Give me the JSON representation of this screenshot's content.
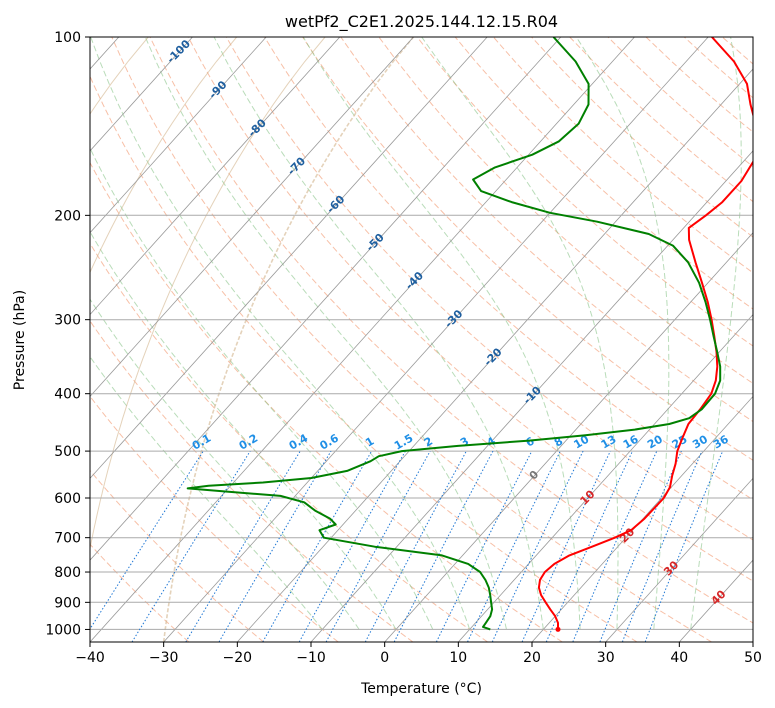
{
  "chart_data": {
    "type": "line",
    "title": "wetPf2_C2E1.2025.144.12.15.R04",
    "xlabel": "Temperature (°C)",
    "ylabel": "Pressure (hPa)",
    "xlim": [
      -40,
      50
    ],
    "ylim": [
      1050,
      100
    ],
    "y_scale": "log",
    "grid": true,
    "x_ticks": [
      "−40",
      "−30",
      "−20",
      "−10",
      "0",
      "10",
      "20",
      "30",
      "40",
      "50"
    ],
    "y_ticks": [
      "100",
      "200",
      "300",
      "400",
      "500",
      "600",
      "700",
      "800",
      "900",
      "1000"
    ],
    "series": [
      {
        "color": "#ff0000",
        "points": [
          {
            "p": 1000,
            "t": 22.0
          },
          {
            "p": 975,
            "t": 21.2
          },
          {
            "p": 950,
            "t": 20.0
          },
          {
            "p": 925,
            "t": 18.5
          },
          {
            "p": 900,
            "t": 17.0
          },
          {
            "p": 875,
            "t": 15.5
          },
          {
            "p": 850,
            "t": 14.3
          },
          {
            "p": 825,
            "t": 13.5
          },
          {
            "p": 800,
            "t": 13.2
          },
          {
            "p": 775,
            "t": 13.5
          },
          {
            "p": 750,
            "t": 14.5
          },
          {
            "p": 725,
            "t": 16.5
          },
          {
            "p": 700,
            "t": 18.5
          },
          {
            "p": 680,
            "t": 19.8
          },
          {
            "p": 650,
            "t": 20.2
          },
          {
            "p": 600,
            "t": 20.3
          },
          {
            "p": 575,
            "t": 19.8
          },
          {
            "p": 550,
            "t": 18.7
          },
          {
            "p": 525,
            "t": 17.7
          },
          {
            "p": 500,
            "t": 16.4
          },
          {
            "p": 475,
            "t": 15.5
          },
          {
            "p": 450,
            "t": 14.6
          },
          {
            "p": 425,
            "t": 14.4
          },
          {
            "p": 400,
            "t": 14.0
          },
          {
            "p": 380,
            "t": 13.0
          },
          {
            "p": 360,
            "t": 11.5
          },
          {
            "p": 340,
            "t": 9.6
          },
          {
            "p": 320,
            "t": 7.4
          },
          {
            "p": 300,
            "t": 5.0
          },
          {
            "p": 280,
            "t": 2.3
          },
          {
            "p": 260,
            "t": -0.8
          },
          {
            "p": 240,
            "t": -4.2
          },
          {
            "p": 220,
            "t": -7.8
          },
          {
            "p": 210,
            "t": -9.3
          },
          {
            "p": 200,
            "t": -8.5
          },
          {
            "p": 190,
            "t": -7.9
          },
          {
            "p": 175,
            "t": -7.9
          },
          {
            "p": 160,
            "t": -8.8
          },
          {
            "p": 150,
            "t": -11.0
          },
          {
            "p": 140,
            "t": -13.0
          },
          {
            "p": 130,
            "t": -16.0
          },
          {
            "p": 120,
            "t": -19.0
          },
          {
            "p": 110,
            "t": -23.5
          },
          {
            "p": 100,
            "t": -29.5
          }
        ]
      },
      {
        "color": "#008000",
        "points": [
          {
            "p": 1000,
            "t": 12.8
          },
          {
            "p": 990,
            "t": 11.5
          },
          {
            "p": 975,
            "t": 11.4
          },
          {
            "p": 950,
            "t": 11.2
          },
          {
            "p": 925,
            "t": 10.6
          },
          {
            "p": 900,
            "t": 9.6
          },
          {
            "p": 875,
            "t": 8.6
          },
          {
            "p": 850,
            "t": 7.5
          },
          {
            "p": 825,
            "t": 6.1
          },
          {
            "p": 800,
            "t": 4.4
          },
          {
            "p": 775,
            "t": 1.8
          },
          {
            "p": 750,
            "t": -2.8
          },
          {
            "p": 725,
            "t": -13.0
          },
          {
            "p": 700,
            "t": -21.0
          },
          {
            "p": 680,
            "t": -22.5
          },
          {
            "p": 665,
            "t": -21.0
          },
          {
            "p": 650,
            "t": -22.5
          },
          {
            "p": 630,
            "t": -25.5
          },
          {
            "p": 610,
            "t": -28.0
          },
          {
            "p": 595,
            "t": -32.0
          },
          {
            "p": 585,
            "t": -40.0
          },
          {
            "p": 578,
            "t": -45.5
          },
          {
            "p": 572,
            "t": -43.0
          },
          {
            "p": 565,
            "t": -36.0
          },
          {
            "p": 555,
            "t": -30.0
          },
          {
            "p": 540,
            "t": -26.0
          },
          {
            "p": 520,
            "t": -24.0
          },
          {
            "p": 510,
            "t": -23.5
          },
          {
            "p": 500,
            "t": -21.0
          },
          {
            "p": 490,
            "t": -14.0
          },
          {
            "p": 480,
            "t": -5.0
          },
          {
            "p": 470,
            "t": 2.0
          },
          {
            "p": 460,
            "t": 8.0
          },
          {
            "p": 450,
            "t": 12.0
          },
          {
            "p": 440,
            "t": 14.0
          },
          {
            "p": 425,
            "t": 14.6
          },
          {
            "p": 400,
            "t": 14.5
          },
          {
            "p": 380,
            "t": 13.6
          },
          {
            "p": 360,
            "t": 11.9
          },
          {
            "p": 340,
            "t": 9.7
          },
          {
            "p": 320,
            "t": 7.3
          },
          {
            "p": 300,
            "t": 4.8
          },
          {
            "p": 280,
            "t": 2.0
          },
          {
            "p": 260,
            "t": -1.2
          },
          {
            "p": 240,
            "t": -5.2
          },
          {
            "p": 225,
            "t": -9.3
          },
          {
            "p": 215,
            "t": -14.0
          },
          {
            "p": 205,
            "t": -22.5
          },
          {
            "p": 198,
            "t": -30.0
          },
          {
            "p": 190,
            "t": -36.5
          },
          {
            "p": 182,
            "t": -42.0
          },
          {
            "p": 174,
            "t": -44.5
          },
          {
            "p": 166,
            "t": -43.0
          },
          {
            "p": 158,
            "t": -39.5
          },
          {
            "p": 150,
            "t": -37.5
          },
          {
            "p": 140,
            "t": -37.0
          },
          {
            "p": 130,
            "t": -38.0
          },
          {
            "p": 120,
            "t": -40.5
          },
          {
            "p": 110,
            "t": -45.0
          },
          {
            "p": 100,
            "t": -51.0
          }
        ]
      }
    ],
    "isotherm_labels": [
      "-100",
      "-90",
      "-80",
      "-70",
      "-60",
      "-50",
      "-40",
      "-30",
      "-20",
      "-10",
      "0",
      "10",
      "20",
      "30",
      "40"
    ],
    "mixing_ratio_labels": [
      "0.1",
      "0.2",
      "0.4",
      "0.6",
      "1",
      "1.5",
      "2",
      "3",
      "4",
      "6",
      "8",
      "10",
      "13",
      "16",
      "20",
      "25",
      "30",
      "36"
    ]
  }
}
